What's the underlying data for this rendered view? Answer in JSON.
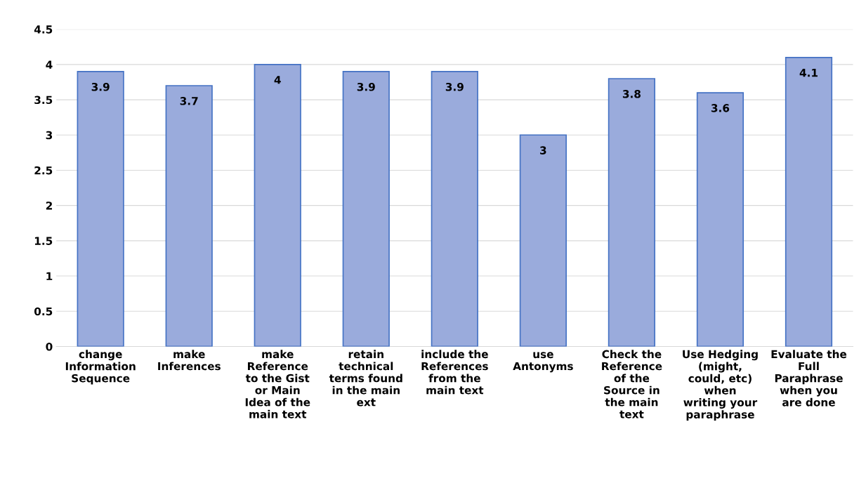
{
  "chart_data": {
    "type": "bar",
    "categories": [
      "change\nInformation\nSequence",
      "make\nInferences",
      "make\nReference\nto the Gist\nor Main\nIdea of the\nmain text",
      "retain\ntechnical\nterms found\nin the main\next",
      "include the\nReferences\nfrom the\nmain text",
      "use\nAntonyms",
      "Check the\nReference\nof the\nSource in\nthe main\ntext",
      "Use Hedging\n(might,\ncould, etc)\nwhen\nwriting your\nparaphrase",
      "Evaluate the\nFull\nParaphrase\nwhen you\nare done"
    ],
    "values": [
      3.9,
      3.7,
      4,
      3.9,
      3.9,
      3,
      3.8,
      3.6,
      4.1
    ],
    "color": "#9aabdc",
    "ylim": [
      0,
      4.5
    ],
    "yticks": [
      0,
      0.5,
      1,
      1.5,
      2,
      2.5,
      3,
      3.5,
      4,
      4.5
    ],
    "grid": "y",
    "data_labels": true
  }
}
